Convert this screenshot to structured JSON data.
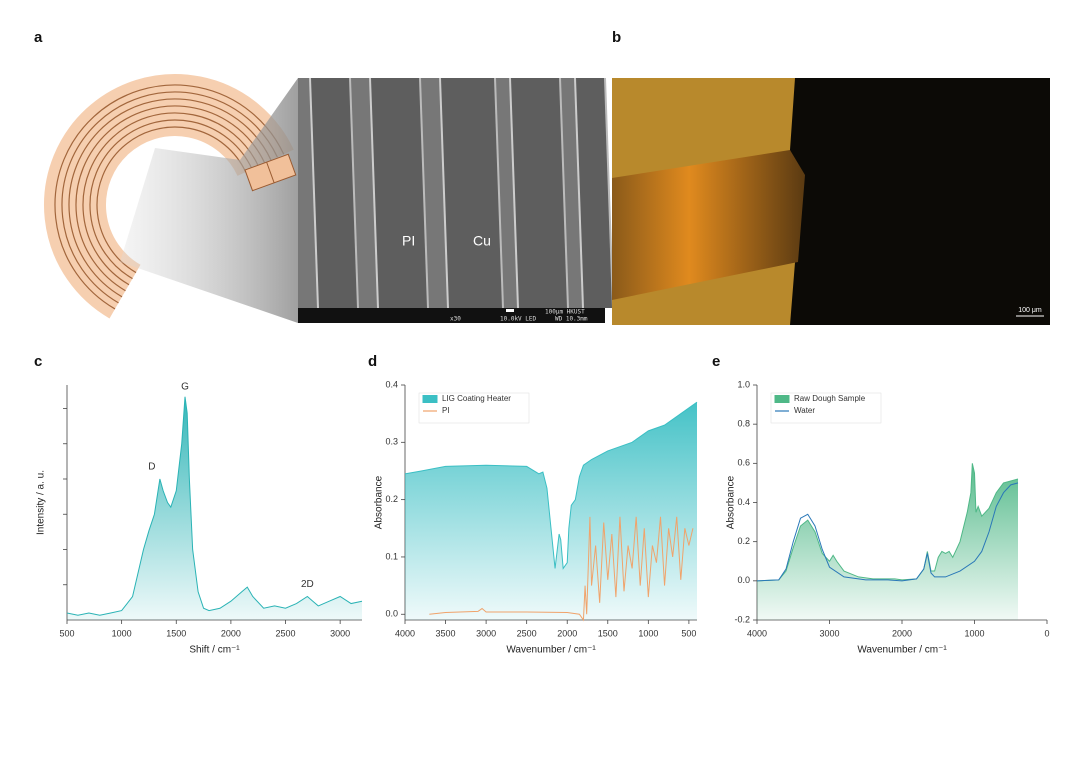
{
  "panel_labels": [
    "a",
    "b",
    "c",
    "d",
    "e"
  ],
  "images": {
    "sem_labels": [
      "PI",
      "Cu"
    ],
    "sem_info": [
      "100μm HKUST",
      "x30",
      "10.0kV LED",
      "WD 10.3mm"
    ],
    "optical_scale": "100 μm"
  },
  "chart_data": [
    {
      "type": "line",
      "xlabel": "Shift / cm⁻¹",
      "ylabel": "Intensity / a. u.",
      "xlim": [
        500,
        3200
      ],
      "xticks": [
        500,
        1000,
        1500,
        2000,
        2500,
        3000
      ],
      "ylim": [
        0,
        1
      ],
      "yticks": [
        0.15,
        0.3,
        0.45,
        0.6,
        0.75,
        0.9
      ],
      "ytick_labels": false,
      "annotations": [
        "D",
        "G",
        "2D"
      ],
      "series": [
        {
          "name": null,
          "color": "#2ab3b5",
          "fill": true,
          "x": [
            500,
            600,
            700,
            800,
            900,
            1000,
            1100,
            1200,
            1250,
            1300,
            1350,
            1380,
            1420,
            1450,
            1500,
            1550,
            1580,
            1600,
            1620,
            1650,
            1700,
            1750,
            1800,
            1900,
            2000,
            2100,
            2150,
            2200,
            2300,
            2400,
            2500,
            2600,
            2700,
            2750,
            2800,
            2900,
            3000,
            3100,
            3200
          ],
          "values": [
            0.03,
            0.02,
            0.03,
            0.02,
            0.03,
            0.04,
            0.1,
            0.3,
            0.38,
            0.45,
            0.6,
            0.55,
            0.5,
            0.48,
            0.55,
            0.75,
            0.95,
            0.88,
            0.6,
            0.3,
            0.12,
            0.05,
            0.04,
            0.05,
            0.08,
            0.12,
            0.14,
            0.1,
            0.05,
            0.06,
            0.05,
            0.07,
            0.1,
            0.08,
            0.06,
            0.08,
            0.1,
            0.07,
            0.08
          ]
        }
      ]
    },
    {
      "type": "line",
      "xlabel": "Wavenumber / cm⁻¹",
      "ylabel": "Absorbance",
      "xlim": [
        4000,
        400
      ],
      "xticks": [
        4000,
        3500,
        3000,
        2500,
        2000,
        1500,
        1000,
        500
      ],
      "ylim": [
        -0.01,
        0.4
      ],
      "yticks": [
        {
          "value": 0,
          "label": "0.0"
        },
        0.1,
        0.2,
        0.3,
        0.4
      ],
      "legend": "upper left",
      "series": [
        {
          "name": "LIG Coating Heater",
          "color": "#3bbfc4",
          "fill": true,
          "x": [
            4000,
            3800,
            3500,
            3000,
            2500,
            2350,
            2300,
            2250,
            2200,
            2150,
            2100,
            2080,
            2050,
            2000,
            1980,
            1950,
            1900,
            1850,
            1800,
            1700,
            1500,
            1200,
            1000,
            800,
            600,
            500,
            400
          ],
          "values": [
            0.245,
            0.25,
            0.258,
            0.26,
            0.258,
            0.245,
            0.248,
            0.22,
            0.15,
            0.08,
            0.14,
            0.13,
            0.08,
            0.09,
            0.15,
            0.19,
            0.2,
            0.24,
            0.26,
            0.27,
            0.285,
            0.3,
            0.32,
            0.33,
            0.35,
            0.36,
            0.37
          ]
        },
        {
          "name": "PI",
          "color": "#f0a36b",
          "fill": false,
          "x": [
            3700,
            3500,
            3100,
            3050,
            3000,
            2500,
            2000,
            1850,
            1800,
            1780,
            1760,
            1720,
            1700,
            1650,
            1600,
            1550,
            1500,
            1450,
            1400,
            1350,
            1300,
            1250,
            1200,
            1150,
            1100,
            1050,
            1000,
            950,
            900,
            850,
            800,
            750,
            700,
            650,
            600,
            550,
            500,
            450
          ],
          "values": [
            0.0,
            0.003,
            0.005,
            0.01,
            0.004,
            0.004,
            0.003,
            0.0,
            -0.01,
            0.05,
            0.0,
            0.17,
            0.05,
            0.12,
            0.02,
            0.16,
            0.06,
            0.14,
            0.03,
            0.17,
            0.04,
            0.12,
            0.08,
            0.17,
            0.05,
            0.15,
            0.03,
            0.12,
            0.09,
            0.17,
            0.05,
            0.15,
            0.1,
            0.17,
            0.06,
            0.15,
            0.12,
            0.15
          ]
        }
      ]
    },
    {
      "type": "line",
      "xlabel": "Wavenumber / cm⁻¹",
      "ylabel": "Absorbance",
      "xlim": [
        4000,
        0
      ],
      "xticks": [
        4000,
        3000,
        2000,
        1000,
        0
      ],
      "ylim": [
        -0.2,
        1.0
      ],
      "yticks": [
        {
          "value": -0.2,
          "label": "-0.2"
        },
        {
          "value": 0,
          "label": "0.0"
        },
        0.2,
        0.4,
        0.6,
        0.8,
        {
          "value": 1.0,
          "label": "1.0"
        }
      ],
      "legend": "upper left",
      "series": [
        {
          "name": "Raw Dough Sample",
          "color": "#4fb887",
          "fill": true,
          "x": [
            4000,
            3700,
            3600,
            3500,
            3400,
            3300,
            3200,
            3100,
            3000,
            2950,
            2900,
            2800,
            2600,
            2400,
            2200,
            2100,
            2000,
            1800,
            1700,
            1650,
            1600,
            1550,
            1500,
            1450,
            1400,
            1350,
            1300,
            1200,
            1100,
            1050,
            1030,
            1000,
            980,
            950,
            900,
            800,
            700,
            600,
            500,
            400
          ],
          "values": [
            0,
            0.005,
            0.05,
            0.17,
            0.28,
            0.31,
            0.25,
            0.14,
            0.1,
            0.13,
            0.1,
            0.05,
            0.02,
            0.01,
            0.01,
            0.01,
            0.005,
            0.01,
            0.06,
            0.15,
            0.05,
            0.05,
            0.12,
            0.15,
            0.14,
            0.15,
            0.12,
            0.2,
            0.35,
            0.45,
            0.6,
            0.55,
            0.35,
            0.38,
            0.33,
            0.37,
            0.45,
            0.5,
            0.51,
            0.52
          ]
        },
        {
          "name": "Water",
          "color": "#2a78b8",
          "fill": false,
          "x": [
            4000,
            3700,
            3600,
            3500,
            3400,
            3300,
            3200,
            3100,
            3000,
            2800,
            2500,
            2200,
            2000,
            1800,
            1700,
            1650,
            1600,
            1550,
            1400,
            1200,
            1000,
            900,
            800,
            700,
            600,
            500,
            400
          ],
          "values": [
            0,
            0.005,
            0.06,
            0.2,
            0.32,
            0.34,
            0.28,
            0.16,
            0.07,
            0.02,
            0.005,
            0.005,
            0.0,
            0.01,
            0.06,
            0.14,
            0.04,
            0.02,
            0.02,
            0.05,
            0.1,
            0.15,
            0.25,
            0.38,
            0.45,
            0.49,
            0.5
          ]
        }
      ]
    }
  ]
}
